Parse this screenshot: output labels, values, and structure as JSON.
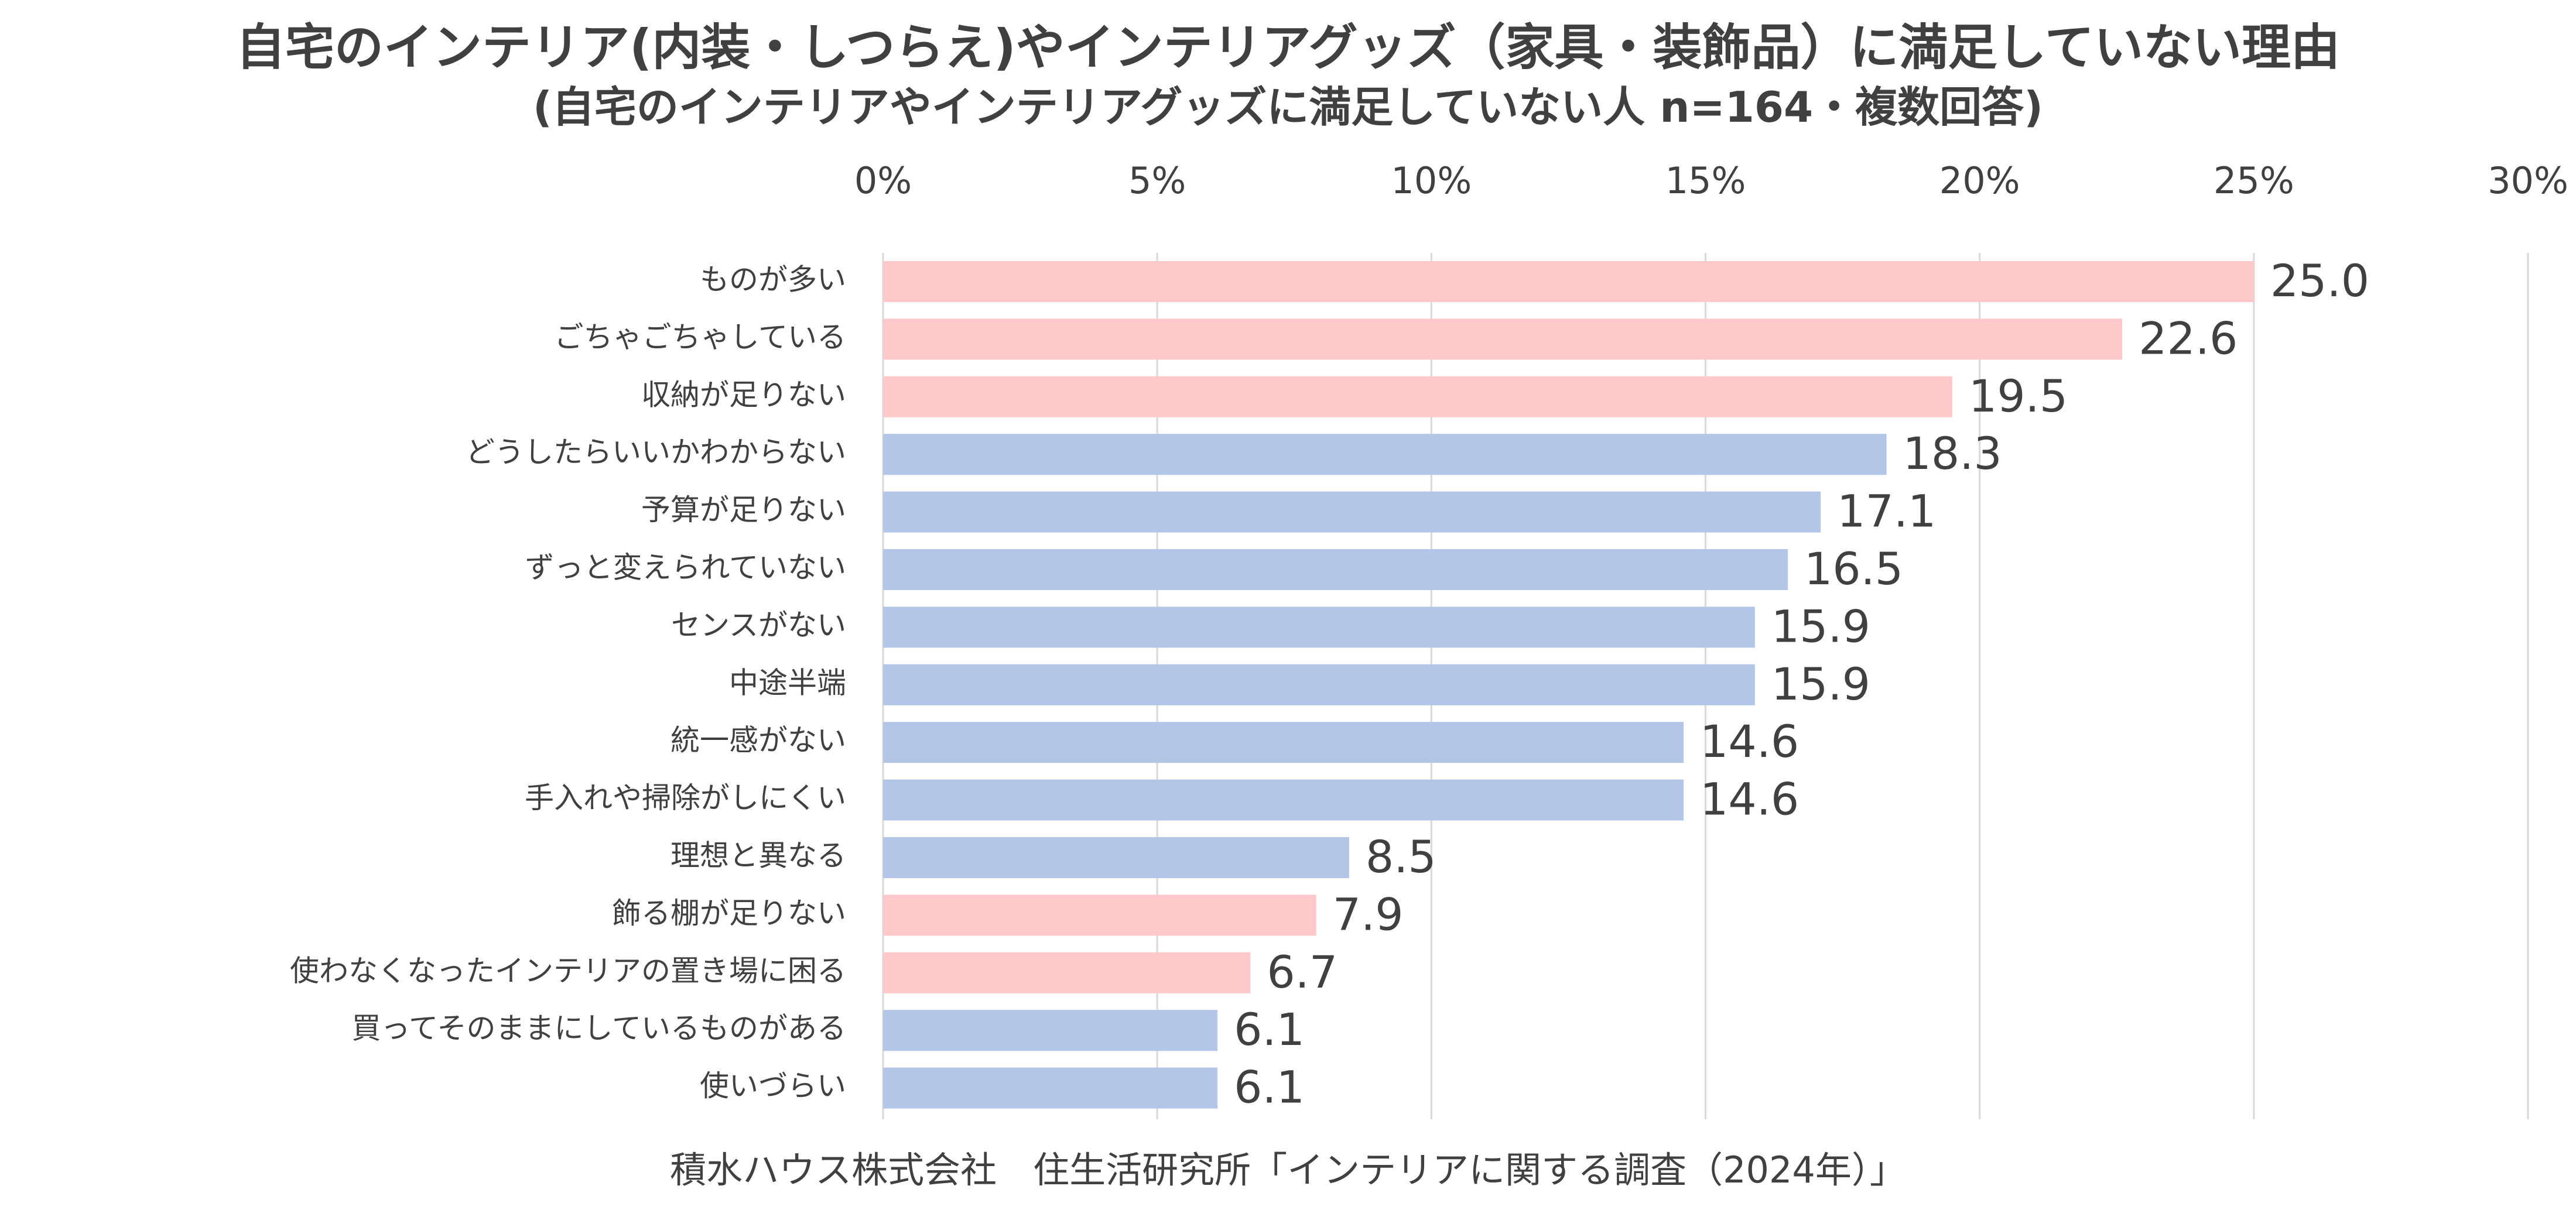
{
  "chart_data": {
    "type": "bar",
    "orientation": "horizontal",
    "title": "自宅のインテリア(内装・しつらえ)やインテリアグッズ（家具・装飾品）に満足していない理由",
    "subtitle": "(自宅のインテリアやインテリアグッズに満足していない人 n=164・複数回答)",
    "source": "積水ハウス株式会社　住生活研究所「インテリアに関する調査（2024年）」",
    "xlim": [
      0,
      30
    ],
    "x_ticks": [
      0,
      5,
      10,
      15,
      20,
      25,
      30
    ],
    "x_tick_labels": [
      "0%",
      "5%",
      "10%",
      "15%",
      "20%",
      "25%",
      "30%"
    ],
    "x_axis_position": "top",
    "grid": true,
    "categories": [
      "ものが多い",
      "ごちゃごちゃしている",
      "収納が足りない",
      "どうしたらいいかわからない",
      "予算が足りない",
      "ずっと変えられていない",
      "センスがない",
      "中途半端",
      "統一感がない",
      "手入れや掃除がしにくい",
      "理想と異なる",
      "飾る棚が足りない",
      "使わなくなったインテリアの置き場に困る",
      "買ってそのままにしているものがある",
      "使いづらい"
    ],
    "values": [
      25.0,
      22.6,
      19.5,
      18.3,
      17.1,
      16.5,
      15.9,
      15.9,
      14.6,
      14.6,
      8.5,
      7.9,
      6.7,
      6.1,
      6.1
    ],
    "value_labels": [
      "25.0",
      "22.6",
      "19.5",
      "18.3",
      "17.1",
      "16.5",
      "15.9",
      "15.9",
      "14.6",
      "14.6",
      "8.5",
      "7.9",
      "6.7",
      "6.1",
      "6.1"
    ],
    "bar_colors": [
      "#ffc9cb",
      "#ffc9cb",
      "#ffc9cb",
      "#b3c6e7",
      "#b3c6e7",
      "#b3c6e7",
      "#b3c6e7",
      "#b3c6e7",
      "#b3c6e7",
      "#b3c6e7",
      "#b3c6e7",
      "#ffc9cb",
      "#ffc9cb",
      "#b3c6e7",
      "#b3c6e7"
    ],
    "colors": {
      "highlight": "#ffc9cb",
      "normal": "#b3c6e7",
      "grid": "#d9d9d9",
      "text": "#404040"
    }
  }
}
